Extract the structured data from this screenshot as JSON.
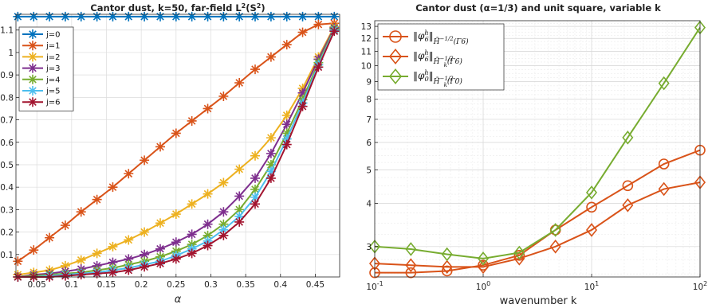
{
  "chart_data": [
    {
      "type": "line",
      "title": "Cantor dust, k=50, far-field L",
      "title_sup": "2",
      "title_suffix": "(S",
      "title_sup2": "2",
      "title_end": ")",
      "xlabel": "α",
      "ylabel": "",
      "xlim": [
        0.02,
        0.485
      ],
      "ylim": [
        0.0,
        1.17
      ],
      "xticks": [
        0.05,
        0.1,
        0.15,
        0.2,
        0.25,
        0.3,
        0.35,
        0.4,
        0.45
      ],
      "xtick_labels": [
        "0.05",
        "0.1",
        "0.15",
        "0.2",
        "0.25",
        "0.3",
        "0.35",
        "0.4",
        "0.45"
      ],
      "yticks": [
        0.1,
        0.2,
        0.3,
        0.4,
        0.5,
        0.6,
        0.7,
        0.8,
        0.9,
        1.0,
        1.1
      ],
      "ytick_labels": [
        "0.1",
        "0.2",
        "0.3",
        "0.4",
        "0.5",
        "0.6",
        "0.7",
        "0.8",
        "0.9",
        "1",
        "1.1"
      ],
      "grid": true,
      "legend_position": "top-left",
      "x": [
        0.0227,
        0.0455,
        0.0682,
        0.0909,
        0.1136,
        0.1364,
        0.1591,
        0.1818,
        0.2045,
        0.2273,
        0.25,
        0.2727,
        0.2955,
        0.3182,
        0.3409,
        0.3636,
        0.3864,
        0.4091,
        0.4318,
        0.4545,
        0.4773
      ],
      "series": [
        {
          "name": "j=0",
          "color": "#0072BD",
          "values": [
            1.16,
            1.16,
            1.16,
            1.16,
            1.16,
            1.16,
            1.16,
            1.16,
            1.16,
            1.16,
            1.16,
            1.16,
            1.16,
            1.16,
            1.16,
            1.16,
            1.16,
            1.16,
            1.16,
            1.16,
            1.16
          ]
        },
        {
          "name": "j=1",
          "color": "#D95319",
          "values": [
            0.07,
            0.12,
            0.175,
            0.23,
            0.29,
            0.345,
            0.4,
            0.46,
            0.52,
            0.58,
            0.64,
            0.695,
            0.75,
            0.805,
            0.865,
            0.925,
            0.98,
            1.035,
            1.09,
            1.125,
            1.13
          ]
        },
        {
          "name": "j=2",
          "color": "#EDB120",
          "values": [
            0.01,
            0.02,
            0.03,
            0.05,
            0.075,
            0.105,
            0.135,
            0.165,
            0.2,
            0.24,
            0.28,
            0.325,
            0.37,
            0.42,
            0.48,
            0.54,
            0.62,
            0.72,
            0.84,
            0.98,
            1.115
          ]
        },
        {
          "name": "j=3",
          "color": "#7E2F8E",
          "values": [
            0.0,
            0.01,
            0.015,
            0.025,
            0.035,
            0.05,
            0.065,
            0.08,
            0.1,
            0.125,
            0.155,
            0.19,
            0.235,
            0.29,
            0.36,
            0.44,
            0.55,
            0.68,
            0.82,
            0.97,
            1.11
          ]
        },
        {
          "name": "j=4",
          "color": "#77AC30",
          "values": [
            0.0,
            0.005,
            0.01,
            0.015,
            0.02,
            0.03,
            0.04,
            0.055,
            0.07,
            0.09,
            0.115,
            0.145,
            0.185,
            0.235,
            0.3,
            0.39,
            0.5,
            0.64,
            0.79,
            0.955,
            1.105
          ]
        },
        {
          "name": "j=5",
          "color": "#4DBEEE",
          "values": [
            0.0,
            0.0,
            0.005,
            0.01,
            0.015,
            0.02,
            0.03,
            0.04,
            0.055,
            0.07,
            0.095,
            0.125,
            0.16,
            0.21,
            0.27,
            0.355,
            0.47,
            0.615,
            0.775,
            0.945,
            1.1
          ]
        },
        {
          "name": "j=6",
          "color": "#A2142F",
          "values": [
            0.0,
            0.0,
            0.0,
            0.005,
            0.01,
            0.015,
            0.02,
            0.03,
            0.045,
            0.06,
            0.08,
            0.105,
            0.14,
            0.185,
            0.245,
            0.325,
            0.44,
            0.59,
            0.76,
            0.935,
            1.095
          ]
        }
      ]
    },
    {
      "type": "line",
      "title": "Cantor dust (α=1/3) and unit square, variable k",
      "xlabel": "wavenumber k",
      "ylabel": "",
      "xscale": "log",
      "yscale": "log",
      "xlim": [
        0.1,
        100
      ],
      "ylim": [
        2.45,
        13.5
      ],
      "xticks": [
        0.1,
        1,
        10,
        100
      ],
      "xtick_labels": [
        "10",
        "10",
        "10",
        "10"
      ],
      "xtick_exponents": [
        "-1",
        "0",
        "1",
        "2"
      ],
      "yticks": [
        3,
        4,
        5,
        6,
        7,
        8,
        9,
        10,
        11,
        12,
        13
      ],
      "ytick_labels": [
        "3",
        "4",
        "5",
        "6",
        "7",
        "8",
        "9",
        "10",
        "11",
        "12",
        "13"
      ],
      "grid": true,
      "legend_position": "top-left",
      "x": [
        0.1,
        0.2154,
        0.4642,
        1.0,
        2.154,
        4.642,
        10.0,
        21.54,
        46.42,
        100.0
      ],
      "series": [
        {
          "name": "‖φ6h‖ H̃^{-1/2}(Γ6)",
          "label_main": "‖φ",
          "label_sub": "6",
          "label_sup": "h",
          "label_norm": "‖",
          "label_space": "H̃",
          "label_space_sup": "−1/2",
          "label_space_arg": "(Γ6)",
          "marker": "circle",
          "color": "#D95319",
          "values": [
            2.52,
            2.52,
            2.55,
            2.65,
            2.83,
            3.35,
            3.9,
            4.5,
            5.2,
            5.7
          ]
        },
        {
          "name": "‖φ6h‖ H̃k^{-1/2}(Γ6)",
          "label_main": "‖φ",
          "label_sub": "6",
          "label_sup": "h",
          "label_norm": "‖",
          "label_space": "H̃",
          "label_space_sub": "k",
          "label_space_sup": "−1/2",
          "label_space_arg": "(Γ6)",
          "marker": "diamond",
          "color": "#D95319",
          "values": [
            2.68,
            2.65,
            2.62,
            2.62,
            2.77,
            3.0,
            3.35,
            3.95,
            4.4,
            4.6
          ]
        },
        {
          "name": "‖φ0h‖ H̃k^{-1/2}(Γ0)",
          "label_main": "‖φ",
          "label_sub": "0",
          "label_sup": "h",
          "label_norm": "‖",
          "label_space": "H̃",
          "label_space_sub": "k",
          "label_space_sup": "−1/2",
          "label_space_arg": "(Γ0)",
          "marker": "diamond",
          "color": "#77AC30",
          "values": [
            3.0,
            2.95,
            2.85,
            2.77,
            2.88,
            3.35,
            4.3,
            6.2,
            8.9,
            12.9
          ]
        }
      ]
    }
  ]
}
